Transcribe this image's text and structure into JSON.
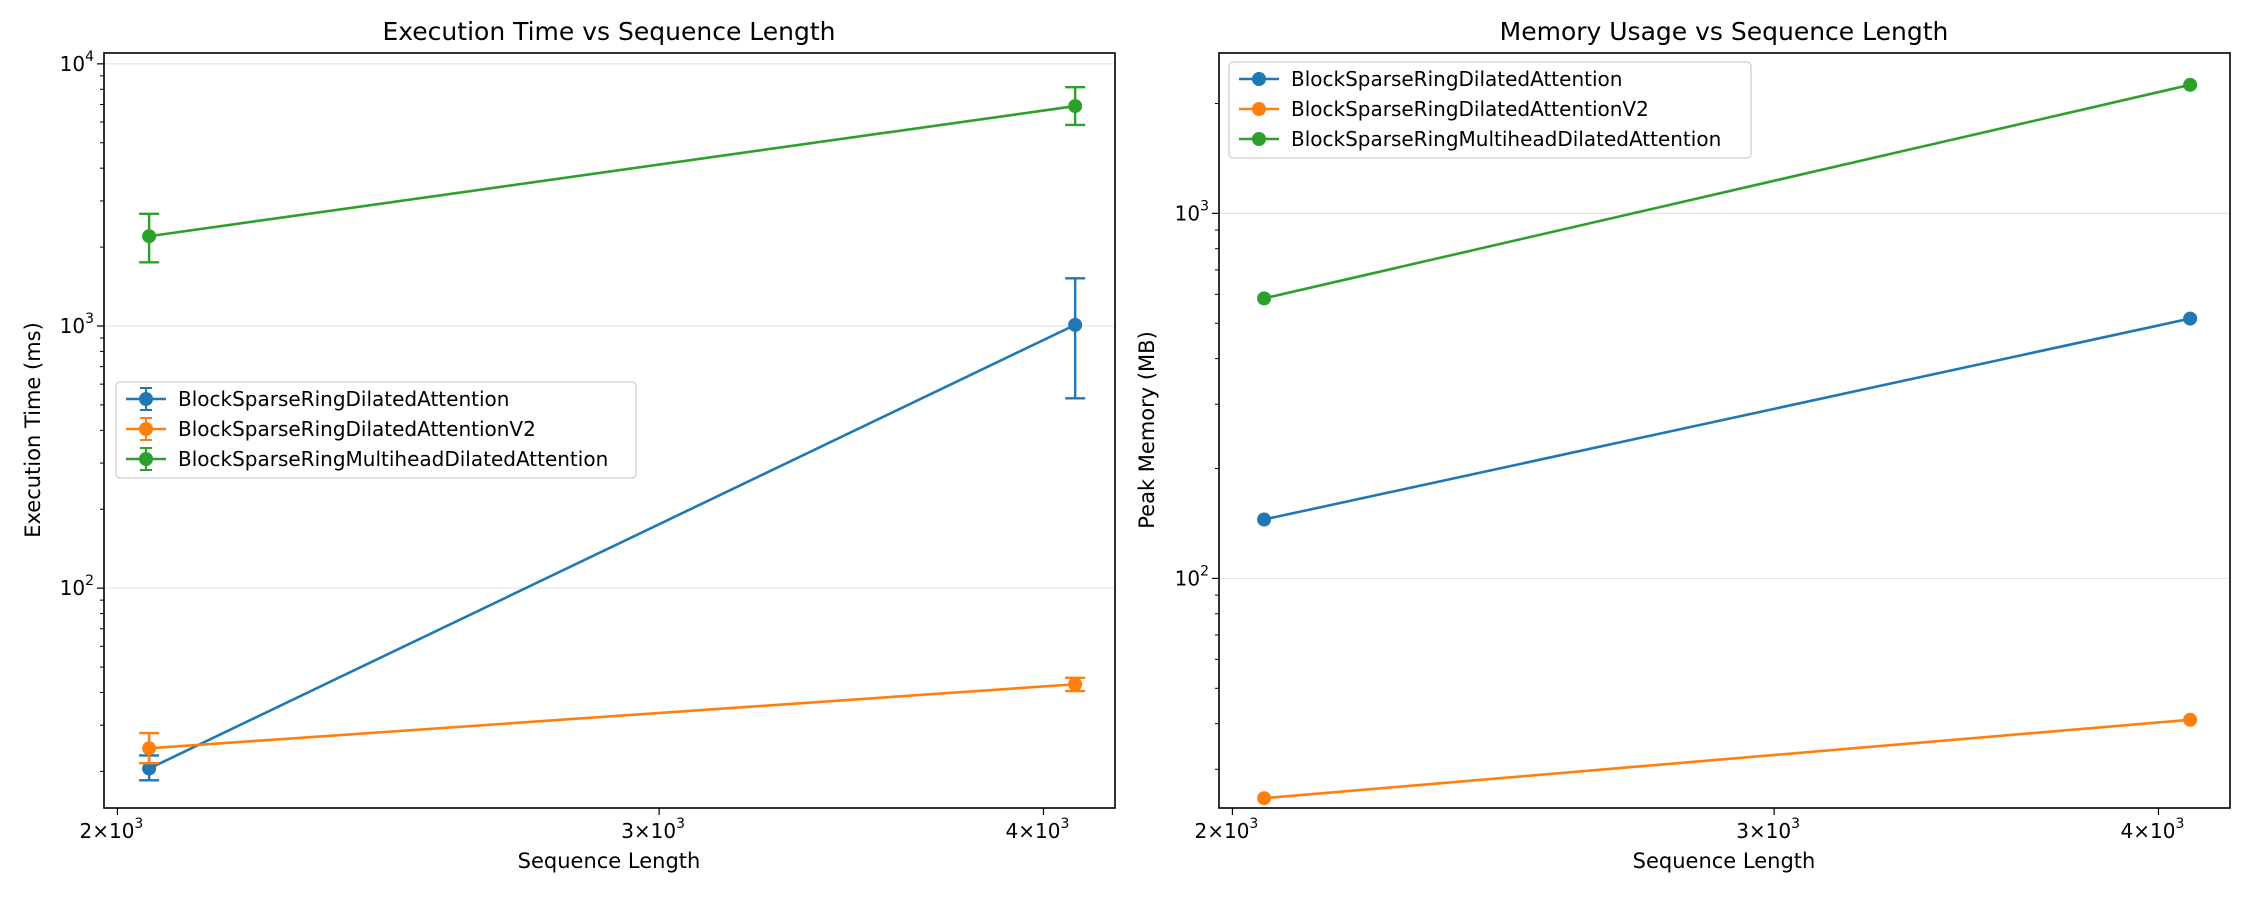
{
  "chart_data": [
    {
      "type": "line",
      "title": "Execution Time vs Sequence Length",
      "xlabel": "Sequence Length",
      "ylabel": "Execution Time (ms)",
      "xscale": "log",
      "yscale": "log",
      "xlim": [
        1980,
        4220
      ],
      "ylim": [
        14.5,
        11000
      ],
      "xticks": [
        {
          "value": 2000,
          "base": "2×10",
          "exp": "3"
        },
        {
          "value": 3000,
          "base": "3×10",
          "exp": "3"
        },
        {
          "value": 4000,
          "base": "4×10",
          "exp": "3"
        }
      ],
      "yticks": [
        {
          "value": 100,
          "base": "10",
          "exp": "2"
        },
        {
          "value": 1000,
          "base": "10",
          "exp": "3"
        },
        {
          "value": 10000,
          "base": "10",
          "exp": "4"
        }
      ],
      "grid": "y",
      "legend_position": "center-left",
      "error_bars": true,
      "series": [
        {
          "name": "BlockSparseRingDilatedAttention",
          "color": "#1f77b4",
          "x": [
            2048,
            4096
          ],
          "y": [
            20.5,
            1010
          ],
          "err_low": [
            18.5,
            530
          ],
          "err_high": [
            23,
            1520
          ]
        },
        {
          "name": "BlockSparseRingDilatedAttentionV2",
          "color": "#ff7f0e",
          "x": [
            2048,
            4096
          ],
          "y": [
            24.5,
            43
          ],
          "err_low": [
            21.5,
            40.5
          ],
          "err_high": [
            28,
            45.5
          ]
        },
        {
          "name": "BlockSparseRingMultiheadDilatedAttention",
          "color": "#2ca02c",
          "x": [
            2048,
            4096
          ],
          "y": [
            2200,
            6900
          ],
          "err_low": [
            1750,
            5850
          ],
          "err_high": [
            2680,
            8150
          ]
        }
      ]
    },
    {
      "type": "line",
      "title": "Memory Usage vs Sequence Length",
      "xlabel": "Sequence Length",
      "ylabel": "Peak Memory (MB)",
      "xscale": "log",
      "yscale": "log",
      "xlim": [
        1980,
        4220
      ],
      "ylim": [
        23.5,
        2750
      ],
      "xticks": [
        {
          "value": 2000,
          "base": "2×10",
          "exp": "3"
        },
        {
          "value": 3000,
          "base": "3×10",
          "exp": "3"
        },
        {
          "value": 4000,
          "base": "4×10",
          "exp": "3"
        }
      ],
      "yticks": [
        {
          "value": 100,
          "base": "10",
          "exp": "2"
        },
        {
          "value": 1000,
          "base": "10",
          "exp": "3"
        }
      ],
      "grid": "y",
      "legend_position": "top-left",
      "error_bars": false,
      "series": [
        {
          "name": "BlockSparseRingDilatedAttention",
          "color": "#1f77b4",
          "x": [
            2048,
            4096
          ],
          "y": [
            145,
            515
          ]
        },
        {
          "name": "BlockSparseRingDilatedAttentionV2",
          "color": "#ff7f0e",
          "x": [
            2048,
            4096
          ],
          "y": [
            25,
            41
          ]
        },
        {
          "name": "BlockSparseRingMultiheadDilatedAttention",
          "color": "#2ca02c",
          "x": [
            2048,
            4096
          ],
          "y": [
            585,
            2250
          ]
        }
      ]
    }
  ]
}
